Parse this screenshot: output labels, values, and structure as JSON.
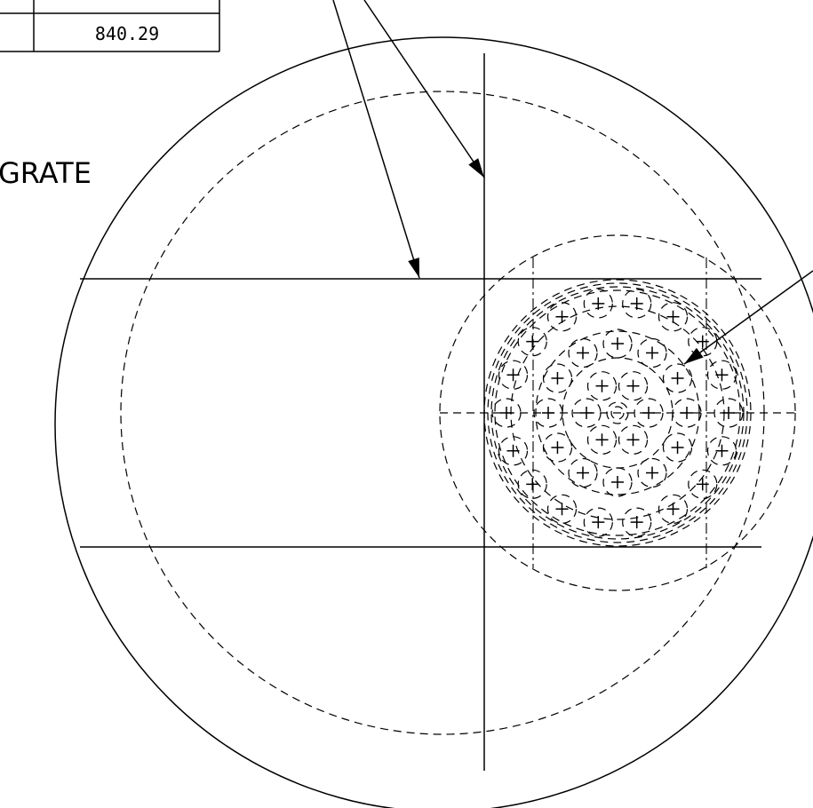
{
  "table": {
    "value": "840.29"
  },
  "label": "GRATE"
}
